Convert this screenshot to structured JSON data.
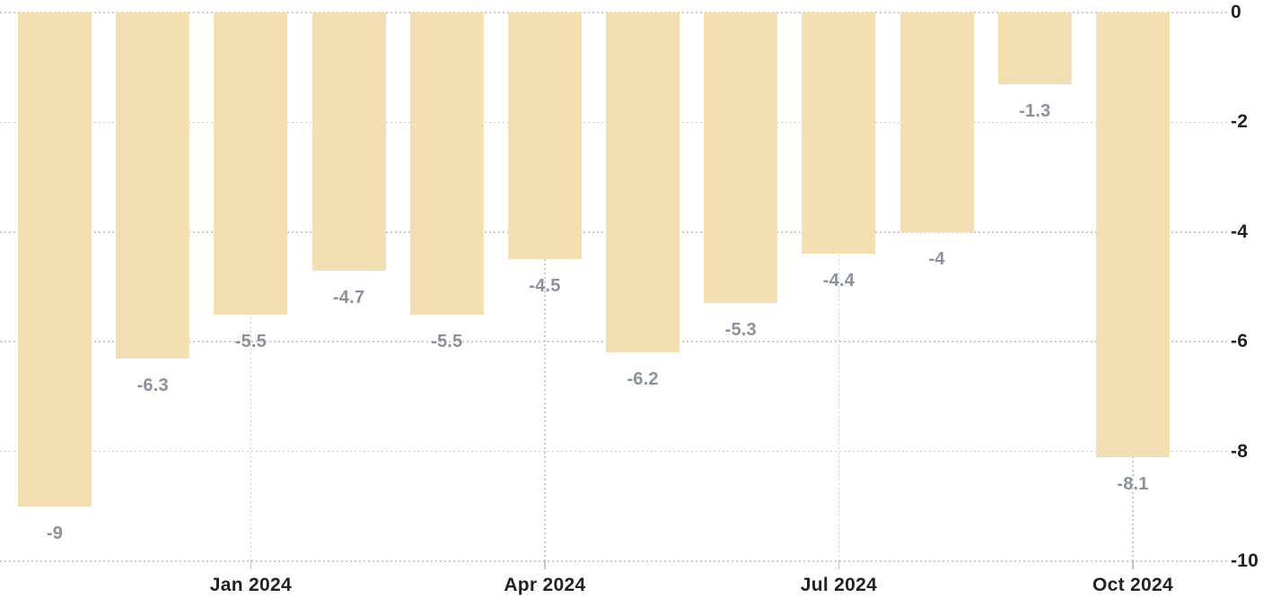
{
  "chart_data": {
    "type": "bar",
    "orientation": "vertical",
    "title": "",
    "xlabel": "",
    "ylabel": "",
    "values": [
      -9,
      -6.3,
      -5.5,
      -4.7,
      -5.5,
      -4.5,
      -6.2,
      -5.3,
      -4.4,
      -4,
      -1.3,
      -8.1
    ],
    "data_labels": [
      "-9",
      "-6.3",
      "-5.5",
      "-4.7",
      "-5.5",
      "-4.5",
      "-6.2",
      "-5.3",
      "-4.4",
      "-4",
      "-1.3",
      "-8.1"
    ],
    "x_tick_labels": [
      "Jan 2024",
      "Apr 2024",
      "Jul 2024",
      "Oct 2024"
    ],
    "x_tick_bar_indices": [
      2,
      5,
      8,
      11
    ],
    "y_tick_labels": [
      "0",
      "-2",
      "-4",
      "-6",
      "-8",
      "-10"
    ],
    "y_tick_values": [
      0,
      -2,
      -4,
      -6,
      -8,
      -10
    ],
    "ylim": [
      -10,
      0
    ],
    "grid": true,
    "gridline_style": "dotted",
    "y_axis_side": "right",
    "legend": "none",
    "colors": {
      "bar_fill": "#f4dfb2",
      "gridline": "#cccccc",
      "tick": "#c4c4c4",
      "axis_label": "#222222",
      "data_label": "#8b919c",
      "background": "#ffffff"
    }
  }
}
